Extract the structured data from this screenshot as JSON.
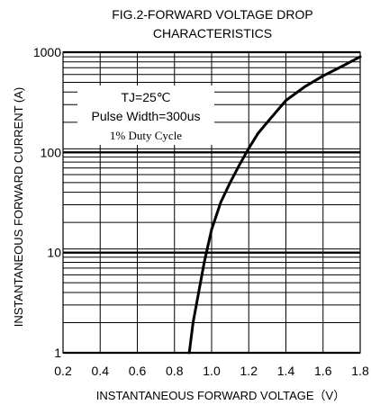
{
  "chart_data": {
    "type": "line",
    "title_lines": [
      "FIG.2-FORWARD VOLTAGE DROP",
      "CHARACTERISTICS"
    ],
    "xlabel": "INSTANTANEOUS FORWARD VOLTAGE（V）",
    "ylabel": "INSTANTANEOUS FORWARD CURRENT (A)",
    "xlim": [
      0.2,
      1.8
    ],
    "ylim": [
      1,
      1000
    ],
    "y_scale": "log",
    "grid": true,
    "x_ticks": [
      {
        "value": 0.2,
        "label": "0.2"
      },
      {
        "value": 0.4,
        "label": "0.4"
      },
      {
        "value": 0.6,
        "label": "0.6"
      },
      {
        "value": 0.8,
        "label": "0.8"
      },
      {
        "value": 1.0,
        "label": "1.0"
      },
      {
        "value": 1.2,
        "label": "1.2"
      },
      {
        "value": 1.4,
        "label": "1.4"
      },
      {
        "value": 1.6,
        "label": "1.6"
      },
      {
        "value": 1.8,
        "label": "1.8"
      }
    ],
    "y_ticks": [
      {
        "value": 1,
        "label": "1"
      },
      {
        "value": 10,
        "label": "10"
      },
      {
        "value": 100,
        "label": "100"
      },
      {
        "value": 1000,
        "label": "1000"
      }
    ],
    "annotation": [
      "TJ=25℃",
      "Pulse Width=300us",
      "1% Duty Cycle"
    ],
    "series": [
      {
        "x": [
          0.88,
          0.9,
          0.93,
          0.96,
          1.0,
          1.05,
          1.1,
          1.15,
          1.2,
          1.25,
          1.3,
          1.4,
          1.5,
          1.6,
          1.7,
          1.8
        ],
        "y": [
          1,
          2,
          4,
          8,
          17,
          32,
          50,
          75,
          110,
          155,
          200,
          330,
          450,
          580,
          720,
          900
        ]
      }
    ],
    "colors": {
      "curve": "#000000",
      "grid": "#000000",
      "annotation_bg": "#ffffff"
    }
  }
}
